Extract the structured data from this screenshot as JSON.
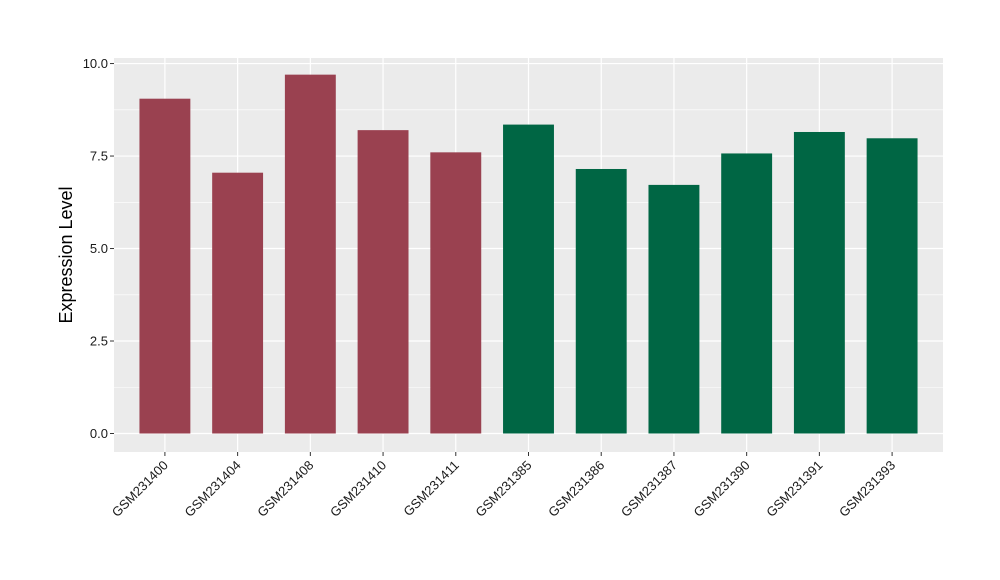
{
  "chart_data": {
    "type": "bar",
    "title": "",
    "xlabel": "",
    "ylabel": "Expression Level",
    "ylim": [
      -0.5,
      10.15
    ],
    "yticks": [
      0.0,
      2.5,
      5.0,
      7.5,
      10.0
    ],
    "ytick_labels": [
      "0.0",
      "2.5",
      "5.0",
      "7.5",
      "10.0"
    ],
    "grid": true,
    "legend": "none",
    "categories": [
      "GSM231400",
      "GSM231404",
      "GSM231408",
      "GSM231410",
      "GSM231411",
      "GSM231385",
      "GSM231386",
      "GSM231387",
      "GSM231390",
      "GSM231391",
      "GSM231393"
    ],
    "values": [
      9.05,
      7.05,
      9.7,
      8.2,
      7.6,
      8.35,
      7.15,
      6.72,
      7.57,
      8.15,
      7.98
    ],
    "bar_colors": [
      "#9a4150",
      "#9a4150",
      "#9a4150",
      "#9a4150",
      "#9a4150",
      "#006644",
      "#006644",
      "#006644",
      "#006644",
      "#006644",
      "#006644"
    ],
    "panel_color": "#ebebeb",
    "grid_color": "#ffffff"
  }
}
